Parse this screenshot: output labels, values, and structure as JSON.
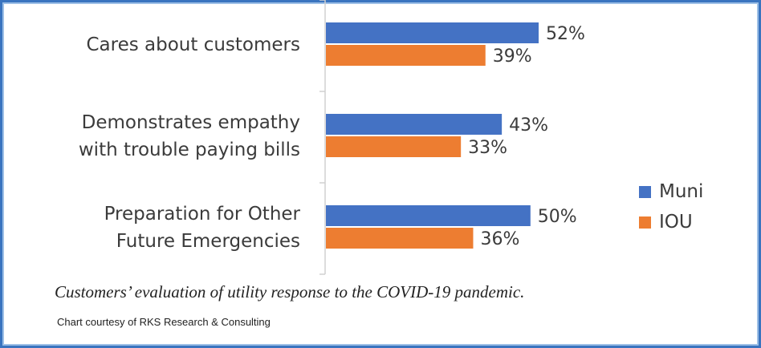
{
  "chart_data": {
    "type": "bar",
    "orientation": "horizontal",
    "categories": [
      [
        "Cares about customers"
      ],
      [
        "Demonstrates empathy",
        "with trouble paying bills"
      ],
      [
        "Preparation for Other",
        "Future Emergencies"
      ]
    ],
    "series": [
      {
        "name": "Muni",
        "color": "#4472c4",
        "values": [
          52,
          43,
          50
        ],
        "labels": [
          "52%",
          "43%",
          "50%"
        ]
      },
      {
        "name": "IOU",
        "color": "#ed7d31",
        "values": [
          39,
          33,
          36
        ],
        "labels": [
          "39%",
          "33%",
          "36%"
        ]
      }
    ],
    "value_unit": "%",
    "xlim": [
      0,
      100
    ],
    "grid": false,
    "legend_position": "right"
  },
  "caption": "Customers’ evaluation of utility response to the COVID-19 pandemic.",
  "credit": "Chart courtesy of RKS Research & Consulting"
}
